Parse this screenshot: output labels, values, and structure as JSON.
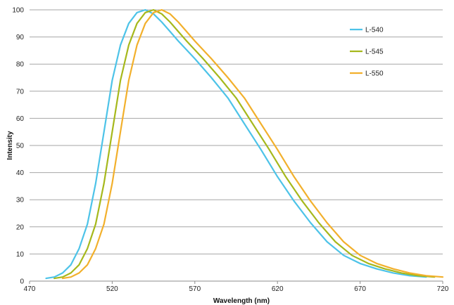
{
  "chart_data": {
    "type": "line",
    "title": "",
    "xlabel": "Wavelength  (nm)",
    "ylabel": "Intensity",
    "xlim": [
      470,
      720
    ],
    "ylim": [
      0,
      100
    ],
    "x_ticks": [
      470,
      520,
      570,
      620,
      670,
      720
    ],
    "y_ticks": [
      0,
      10,
      20,
      30,
      40,
      50,
      60,
      70,
      80,
      90,
      100
    ],
    "grid": "horizontal",
    "legend_position": "right",
    "series": [
      {
        "name": "L-540",
        "color": "#4dc3e8",
        "x": [
          480,
          485,
          490,
          495,
          500,
          505,
          510,
          515,
          520,
          525,
          530,
          535,
          540,
          545,
          550,
          555,
          560,
          570,
          580,
          590,
          600,
          610,
          620,
          630,
          640,
          650,
          660,
          670,
          680,
          690,
          700,
          710
        ],
        "y": [
          1,
          1.5,
          3,
          6,
          12,
          21,
          36,
          55,
          74,
          87,
          95,
          99,
          100,
          98.5,
          95.5,
          92,
          88.5,
          82,
          75,
          67.5,
          58,
          48.5,
          38.5,
          29.5,
          21.5,
          14.5,
          9.5,
          6.5,
          4.5,
          3,
          2,
          1.5
        ]
      },
      {
        "name": "L-545",
        "color": "#a6b81c",
        "x": [
          485,
          490,
          495,
          500,
          505,
          510,
          515,
          520,
          525,
          530,
          535,
          540,
          545,
          550,
          555,
          560,
          565,
          575,
          585,
          595,
          605,
          615,
          625,
          635,
          645,
          655,
          665,
          675,
          685,
          695,
          705,
          715
        ],
        "y": [
          1,
          1.5,
          3,
          6,
          12,
          21,
          36,
          55,
          74,
          87,
          95,
          99,
          100,
          98.5,
          95.5,
          92,
          88.5,
          82,
          75,
          67.5,
          58,
          48.5,
          38.5,
          29.5,
          21.5,
          14.5,
          9.5,
          6.5,
          4.5,
          3,
          2,
          1.5
        ]
      },
      {
        "name": "L-550",
        "color": "#f2b02c",
        "x": [
          490,
          495,
          500,
          505,
          510,
          515,
          520,
          525,
          530,
          535,
          540,
          545,
          550,
          555,
          560,
          565,
          570,
          580,
          590,
          600,
          610,
          620,
          630,
          640,
          650,
          660,
          670,
          680,
          690,
          700,
          710,
          720
        ],
        "y": [
          1,
          1.5,
          3,
          6,
          12,
          21,
          36,
          55,
          74,
          87,
          95,
          99,
          100,
          98.5,
          95.5,
          92,
          88.5,
          82,
          75,
          67.5,
          58,
          48.5,
          38.5,
          29.5,
          21.5,
          14.5,
          9.5,
          6.5,
          4.5,
          3,
          2,
          1.5
        ]
      }
    ]
  }
}
